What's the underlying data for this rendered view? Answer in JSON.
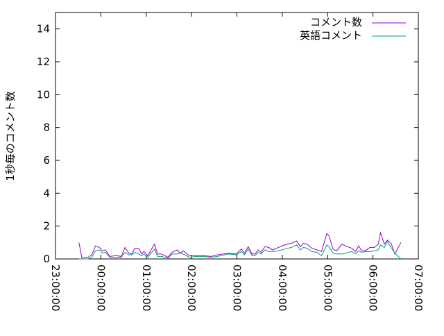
{
  "chart_data": {
    "type": "line",
    "title": "",
    "xlabel": "",
    "ylabel": "1秒毎のコメント数",
    "ylim": [
      0,
      15
    ],
    "xlim": [
      "23:00:00",
      "07:00:00"
    ],
    "yticks": [
      "0",
      "2",
      "4",
      "6",
      "8",
      "10",
      "12",
      "14"
    ],
    "xticks": [
      "23:00:00",
      "00:00:00",
      "01:00:00",
      "02:00:00",
      "03:00:00",
      "04:00:00",
      "05:00:00",
      "06:00:00",
      "07:00:00"
    ],
    "grid": false,
    "legend_position": "top-right",
    "x": [
      "23:31",
      "23:35",
      "23:43",
      "23:48",
      "23:53",
      "23:58",
      "00:02",
      "00:06",
      "00:12",
      "00:20",
      "00:27",
      "00:32",
      "00:37",
      "00:41",
      "00:45",
      "00:50",
      "00:54",
      "00:57",
      "01:02",
      "01:11",
      "01:15",
      "01:20",
      "01:29",
      "01:34",
      "01:41",
      "01:45",
      "01:49",
      "01:57",
      "02:06",
      "02:15",
      "02:26",
      "02:34",
      "02:49",
      "02:59",
      "03:06",
      "03:10",
      "03:15",
      "03:20",
      "03:24",
      "03:28",
      "03:32",
      "03:37",
      "03:42",
      "03:47",
      "03:55",
      "04:03",
      "04:12",
      "04:19",
      "04:24",
      "04:28",
      "04:33",
      "04:39",
      "04:46",
      "04:52",
      "04:59",
      "05:02",
      "05:07",
      "05:12",
      "05:19",
      "05:23",
      "05:32",
      "05:37",
      "05:41",
      "05:45",
      "05:50",
      "05:56",
      "06:02",
      "06:07",
      "06:10",
      "06:15",
      "06:19",
      "06:24",
      "06:29",
      "06:37"
    ],
    "series": [
      {
        "name": "コメント数",
        "color": "#9400d3",
        "values": [
          1.0,
          0.05,
          0.1,
          0.25,
          0.8,
          0.7,
          0.5,
          0.55,
          0.15,
          0.2,
          0.15,
          0.7,
          0.35,
          0.3,
          0.65,
          0.65,
          0.3,
          0.45,
          0.2,
          0.9,
          0.3,
          0.3,
          0.1,
          0.4,
          0.55,
          0.35,
          0.5,
          0.2,
          0.2,
          0.2,
          0.15,
          0.25,
          0.35,
          0.3,
          0.6,
          0.35,
          0.75,
          0.3,
          0.3,
          0.55,
          0.4,
          0.75,
          0.7,
          0.55,
          0.7,
          0.85,
          0.95,
          1.1,
          0.75,
          0.95,
          0.9,
          0.65,
          0.55,
          0.45,
          1.55,
          1.4,
          0.6,
          0.5,
          0.9,
          0.8,
          0.65,
          0.45,
          0.8,
          0.5,
          0.5,
          0.7,
          0.7,
          0.9,
          1.6,
          0.9,
          1.15,
          0.95,
          0.3,
          1.0
        ]
      },
      {
        "name": "英語コメント",
        "color": "#009e73",
        "values": [
          0,
          0,
          0,
          0.1,
          0.5,
          0.55,
          0.35,
          0.4,
          0.1,
          0.1,
          0.1,
          0.4,
          0.25,
          0.25,
          0.4,
          0.3,
          0.2,
          0.3,
          0.1,
          0.6,
          0.15,
          0.15,
          0.05,
          0.3,
          0.3,
          0.35,
          0.3,
          0.1,
          0.15,
          0.15,
          0.1,
          0.15,
          0.3,
          0.25,
          0.45,
          0.25,
          0.6,
          0.2,
          0.2,
          0.4,
          0.3,
          0.55,
          0.45,
          0.45,
          0.5,
          0.6,
          0.7,
          0.85,
          0.55,
          0.7,
          0.65,
          0.45,
          0.4,
          0.2,
          0.85,
          0.75,
          0.35,
          0.3,
          0.3,
          0.35,
          0.45,
          0.3,
          0.5,
          0.4,
          0.45,
          0.45,
          0.5,
          0.55,
          0.85,
          0.7,
          1.05,
          0.7,
          0.35,
          0.0
        ]
      }
    ]
  }
}
